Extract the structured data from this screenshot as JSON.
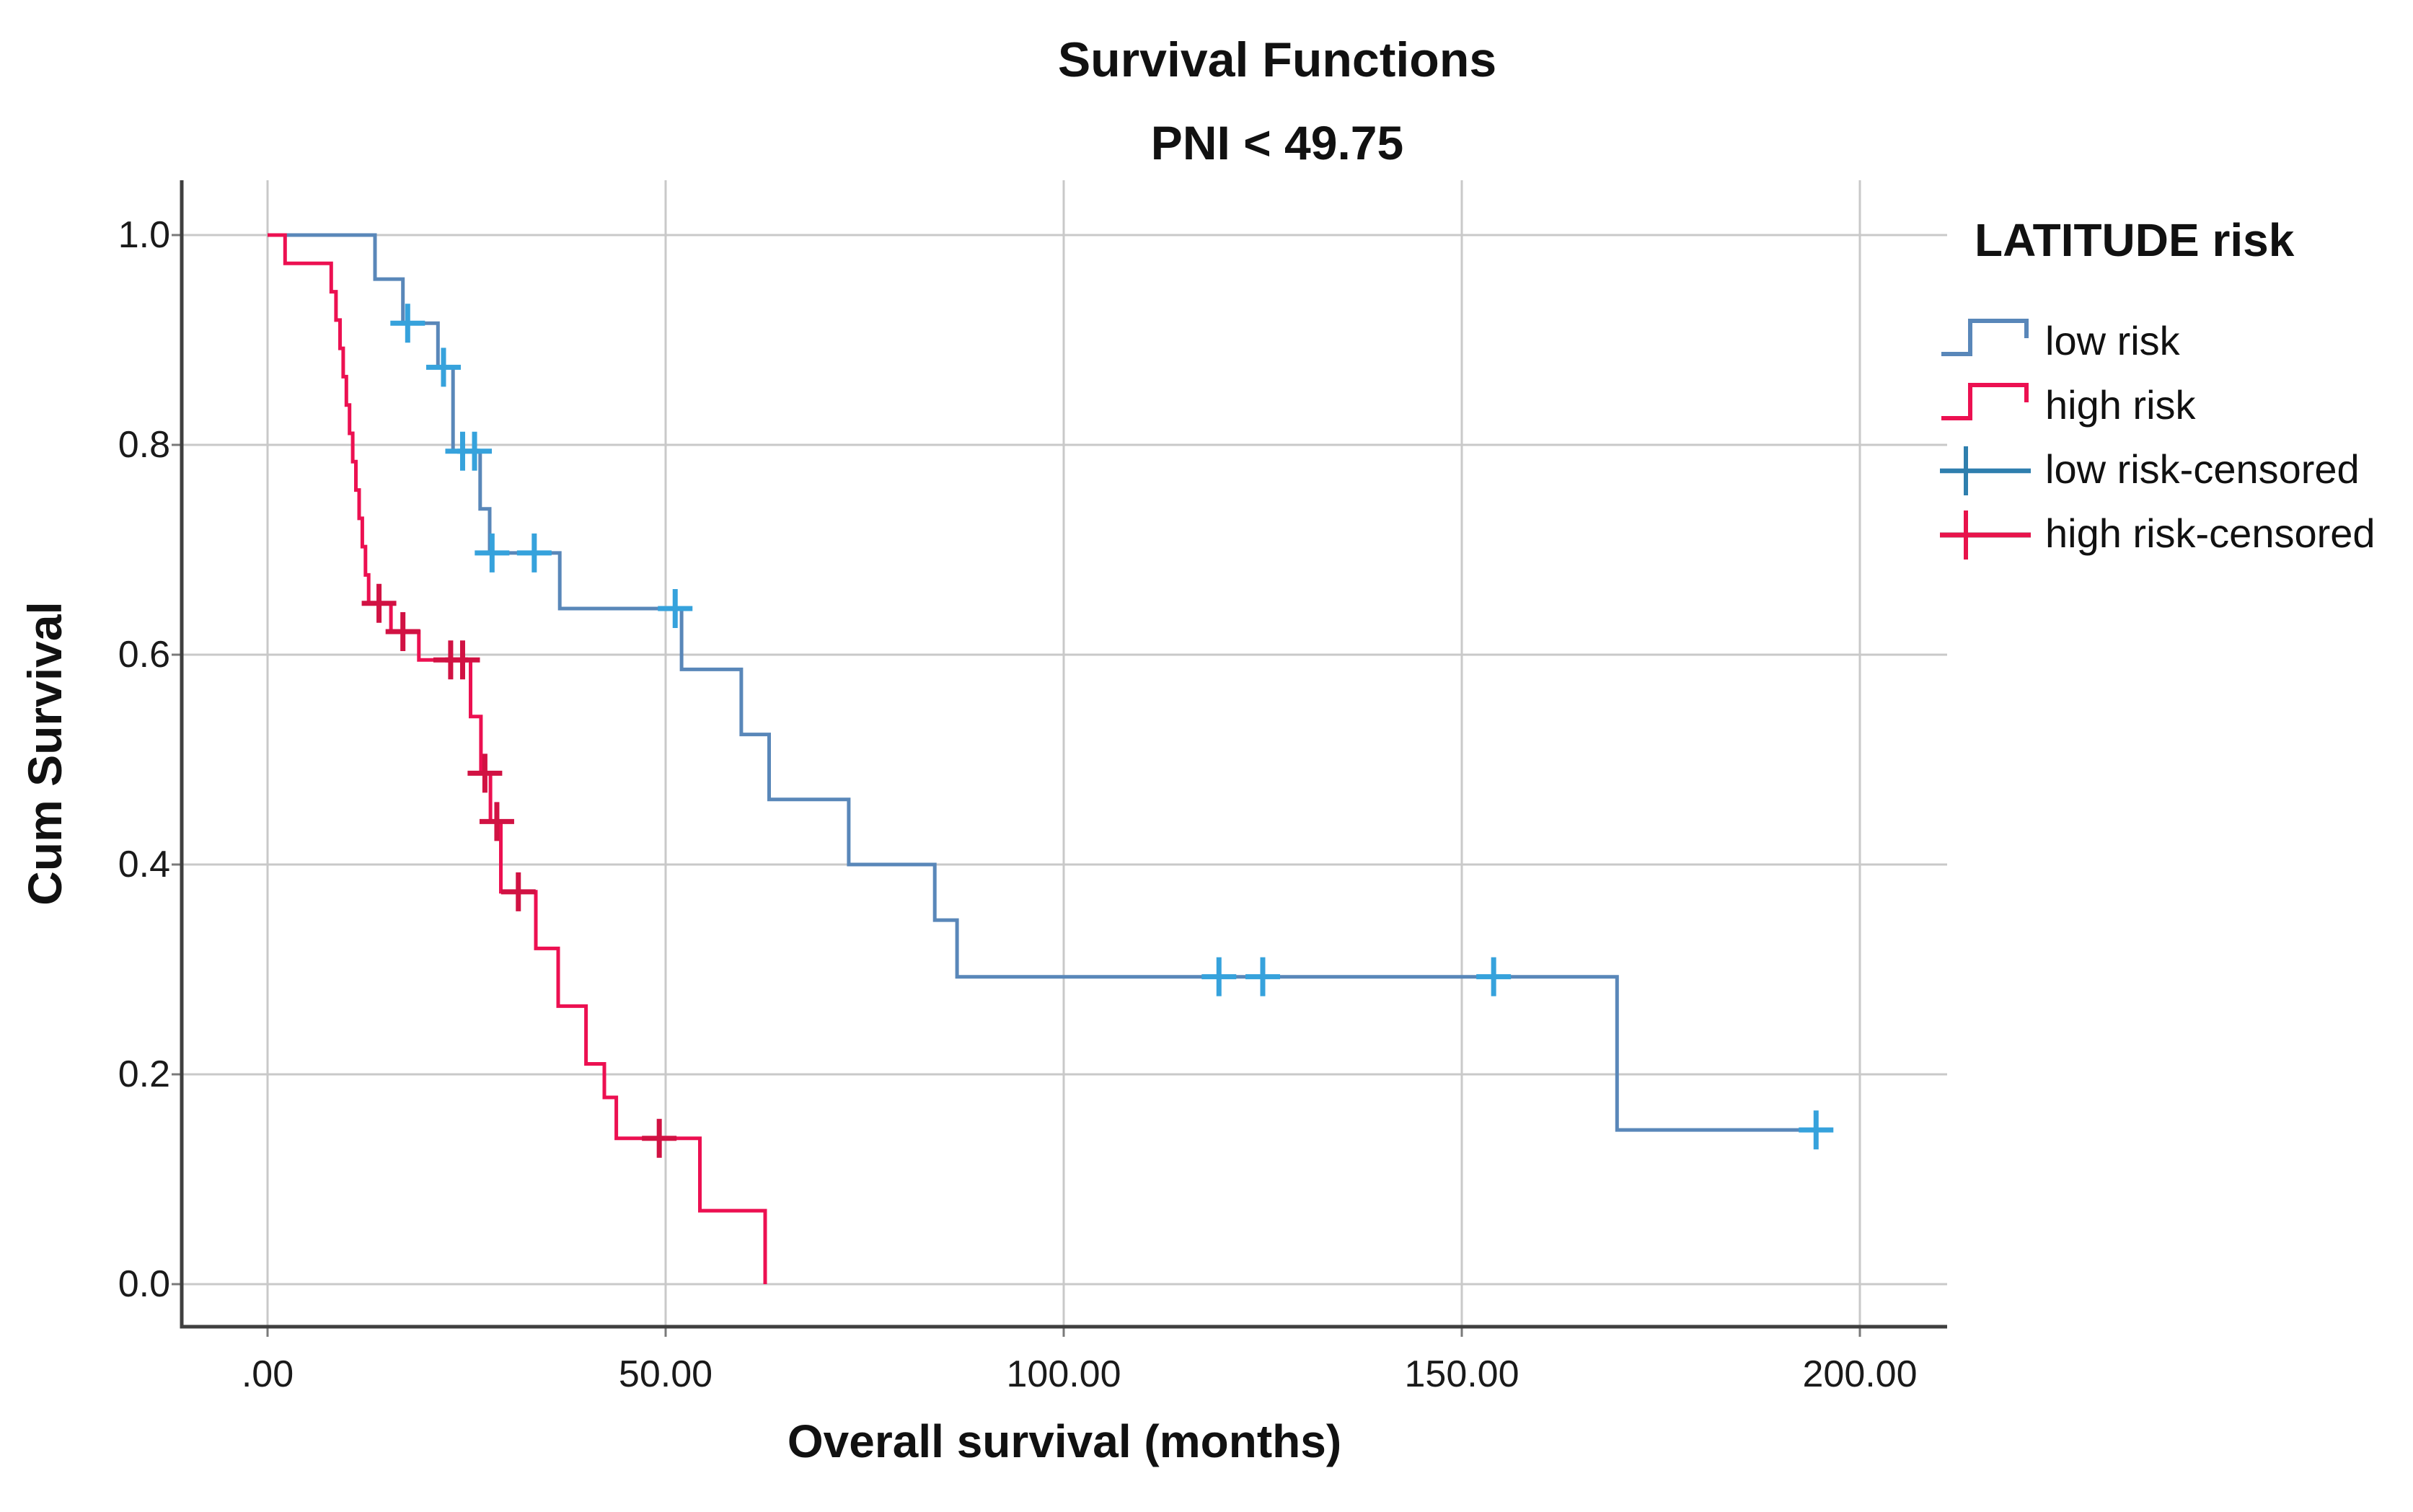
{
  "figure": {
    "title": "Survival Functions",
    "subtitle": "PNI < 49.75",
    "background": "#ffffff",
    "gridline_color": "#c9c9c9",
    "axis_color": "#3f3f3f",
    "text_color": "#111111"
  },
  "legend": {
    "title": "LATITUDE risk",
    "items": [
      {
        "label": "low risk",
        "type": "step",
        "color": "#5987B9"
      },
      {
        "label": "high risk",
        "type": "step",
        "color": "#EC1051"
      },
      {
        "label": "low risk-censored",
        "type": "censor",
        "line_color": "#92B8DA",
        "cross_color": "#2F7FAE"
      },
      {
        "label": "high risk-censored",
        "type": "censor",
        "line_color": "#A43B55",
        "cross_color": "#E8134B"
      }
    ]
  },
  "chart_data": {
    "type": "line",
    "subtype": "kaplan-meier-step",
    "title": "Survival Functions",
    "subtitle": "PNI < 49.75",
    "xlabel": "Overall survival (months)",
    "ylabel": "Cum Survival",
    "xlim": [
      0,
      200
    ],
    "ylim": [
      0.0,
      1.0
    ],
    "grid": true,
    "legend_position": "right",
    "x_ticks": {
      "labels": [
        ".00",
        "50.00",
        "100.00",
        "150.00",
        "200.00"
      ],
      "values": [
        0,
        50,
        100,
        150,
        200
      ]
    },
    "y_ticks": {
      "labels": [
        "0.0",
        "0.2",
        "0.4",
        "0.6",
        "0.8",
        "1.0"
      ],
      "values": [
        0.0,
        0.2,
        0.4,
        0.6,
        0.8,
        1.0
      ]
    },
    "series": [
      {
        "name": "low risk",
        "color": "#5987B9",
        "censor_color": "#36A2DC",
        "levels": [
          [
            0,
            1.0
          ],
          [
            13.5,
            0.958
          ],
          [
            17.0,
            0.916
          ],
          [
            21.4,
            0.874
          ],
          [
            23.3,
            0.794
          ],
          [
            26.7,
            0.739
          ],
          [
            27.9,
            0.697
          ],
          [
            36.7,
            0.644
          ],
          [
            52.0,
            0.586
          ],
          [
            59.5,
            0.524
          ],
          [
            63.0,
            0.462
          ],
          [
            73.0,
            0.4
          ],
          [
            83.8,
            0.347
          ],
          [
            86.6,
            0.293
          ],
          [
            169.5,
            0.147
          ]
        ],
        "end": 196.5,
        "end_survival": 0.147,
        "censored": [
          [
            17.6,
            0.916
          ],
          [
            22.1,
            0.874
          ],
          [
            24.5,
            0.794
          ],
          [
            26.0,
            0.794
          ],
          [
            28.2,
            0.697
          ],
          [
            33.5,
            0.697
          ],
          [
            51.2,
            0.644
          ],
          [
            119.5,
            0.293
          ],
          [
            125.0,
            0.293
          ],
          [
            154.0,
            0.293
          ],
          [
            194.5,
            0.147
          ]
        ]
      },
      {
        "name": "high risk",
        "color": "#EC1051",
        "censor_color": "#D11243",
        "levels": [
          [
            0,
            1.0
          ],
          [
            2.2,
            0.973
          ],
          [
            8.0,
            0.946
          ],
          [
            8.6,
            0.919
          ],
          [
            9.1,
            0.892
          ],
          [
            9.5,
            0.865
          ],
          [
            9.9,
            0.838
          ],
          [
            10.3,
            0.811
          ],
          [
            10.7,
            0.784
          ],
          [
            11.1,
            0.757
          ],
          [
            11.5,
            0.73
          ],
          [
            11.9,
            0.703
          ],
          [
            12.3,
            0.676
          ],
          [
            12.7,
            0.649
          ],
          [
            15.5,
            0.622
          ],
          [
            19.0,
            0.595
          ],
          [
            25.5,
            0.541
          ],
          [
            26.8,
            0.487
          ],
          [
            28.0,
            0.441
          ],
          [
            29.3,
            0.374
          ],
          [
            33.7,
            0.32
          ],
          [
            36.5,
            0.265
          ],
          [
            40.0,
            0.21
          ],
          [
            42.3,
            0.178
          ],
          [
            43.8,
            0.139
          ],
          [
            54.3,
            0.07
          ],
          [
            62.5,
            0.0
          ]
        ],
        "end": 62.5,
        "end_survival": 0.0,
        "censored": [
          [
            14.0,
            0.649
          ],
          [
            17.0,
            0.622
          ],
          [
            23.0,
            0.595
          ],
          [
            24.5,
            0.595
          ],
          [
            27.3,
            0.487
          ],
          [
            28.8,
            0.441
          ],
          [
            31.5,
            0.374
          ],
          [
            49.2,
            0.139
          ]
        ]
      }
    ]
  }
}
